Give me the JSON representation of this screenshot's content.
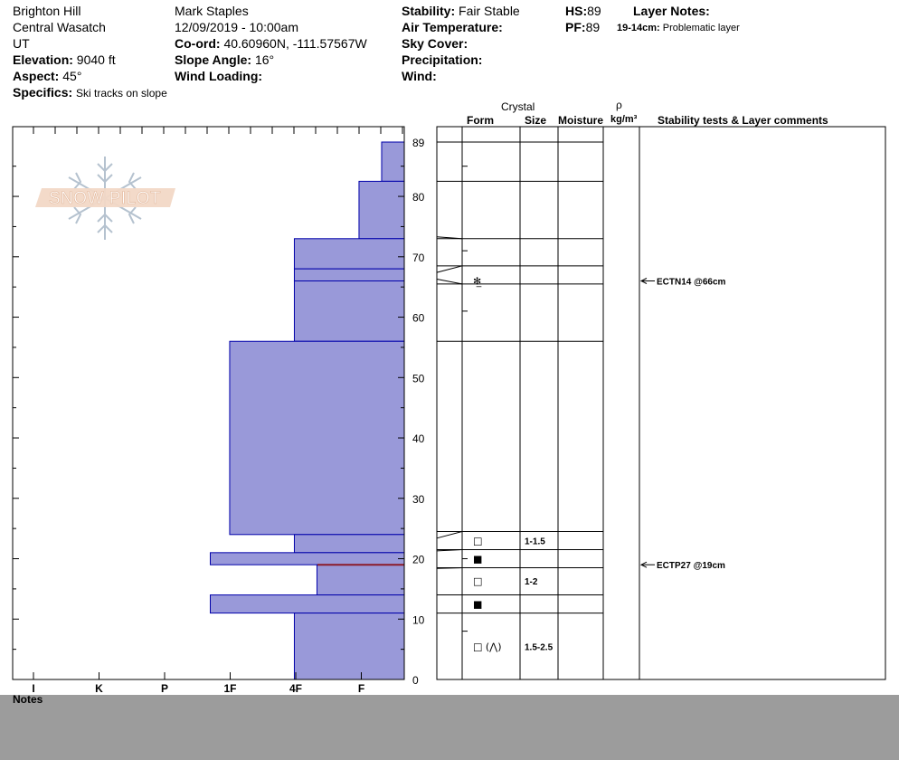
{
  "header": {
    "location": "Brighton Hill",
    "range": "Central Wasatch",
    "state": "UT",
    "elevation_label": "Elevation:",
    "elevation_value": "9040 ft",
    "aspect_label": "Aspect:",
    "aspect_value": "45°",
    "specifics_label": "Specifics:",
    "specifics_value": "Ski tracks on slope",
    "observer": "Mark Staples",
    "datetime": "12/09/2019 - 10:00am",
    "coord_label": "Co-ord:",
    "coord_value": "40.60960N, -111.57567W",
    "slope_label": "Slope Angle:",
    "slope_value": "16°",
    "wind_loading_label": "Wind Loading:",
    "stability_label": "Stability:",
    "stability_value": "Fair Stable",
    "air_temp_label": "Air Temperature:",
    "sky_cover_label": "Sky Cover:",
    "precip_label": "Precipitation:",
    "wind_label": "Wind:",
    "hs_label": "HS:",
    "hs_value": "89",
    "pf_label": "PF:",
    "pf_value": "89",
    "layer_notes_label": "Layer Notes:",
    "layer_note_range": "19-14cm:",
    "layer_note_text": "Problematic layer"
  },
  "columns": {
    "crystal": "Crystal",
    "form": "Form",
    "size": "Size",
    "moisture": "Moisture",
    "rho": "ρ",
    "density": "kg/m³",
    "comments": "Stability tests & Layer comments"
  },
  "logo": {
    "text": "SNOW PILOT"
  },
  "notes_label": "Notes",
  "colors": {
    "hardness_fill": "#9999d9",
    "hardness_stroke": "#0000aa",
    "weak_layer": "#8b1a2a",
    "footer": "#9c9c9c"
  },
  "chart_data": {
    "type": "bar",
    "orientation": "horizontal-step",
    "ylim": [
      0,
      89
    ],
    "y_ticks": [
      "0",
      "10",
      "20",
      "30",
      "40",
      "50",
      "60",
      "70",
      "80",
      "89"
    ],
    "hardness_scale": [
      "I",
      "K",
      "P",
      "1F",
      "4F",
      "F"
    ],
    "hardness_layers": [
      {
        "top": 89,
        "bottom": 82.5,
        "hardness": 0.35
      },
      {
        "top": 82.5,
        "bottom": 73,
        "hardness": 0.7
      },
      {
        "top": 73,
        "bottom": 68,
        "hardness": 1.7
      },
      {
        "top": 68,
        "bottom": 66,
        "hardness": 1.7
      },
      {
        "top": 66,
        "bottom": 56,
        "hardness": 1.7
      },
      {
        "top": 56,
        "bottom": 24,
        "hardness": 2.7
      },
      {
        "top": 24,
        "bottom": 21,
        "hardness": 1.7
      },
      {
        "top": 21,
        "bottom": 19,
        "hardness": 3.0
      },
      {
        "top": 19,
        "bottom": 14,
        "hardness": 1.35
      },
      {
        "top": 14,
        "bottom": 11,
        "hardness": 3.0
      },
      {
        "top": 11,
        "bottom": 0,
        "hardness": 1.7
      }
    ],
    "weak_layer_depth": 19,
    "layer_table": [
      {
        "top": 89,
        "bottom": 82.5
      },
      {
        "top": 82.5,
        "bottom": 73
      },
      {
        "top": 73,
        "bottom": 68.5
      },
      {
        "top": 68.5,
        "bottom": 65.5,
        "form": "✻̲"
      },
      {
        "top": 65.5,
        "bottom": 56
      },
      {
        "top": 56,
        "bottom": 24.5
      },
      {
        "top": 24.5,
        "bottom": 21.5,
        "form": "□",
        "size": "1-1.5"
      },
      {
        "top": 21.5,
        "bottom": 18.5,
        "form": "■"
      },
      {
        "top": 18.5,
        "bottom": 14
      },
      {
        "top": 14,
        "bottom": 11,
        "form": "■"
      },
      {
        "top": 11,
        "bottom": 0
      }
    ],
    "table_symbols": [
      {
        "depth": 66,
        "form": "✻̲"
      },
      {
        "depth": 23,
        "form": "□",
        "size": "1-1.5"
      },
      {
        "depth": 20,
        "form": "■"
      },
      {
        "depth": 16.3,
        "form": "□",
        "size": "1-2"
      },
      {
        "depth": 12.5,
        "form": "■"
      },
      {
        "depth": 5.5,
        "form": "□ (⋀)",
        "size": "1.5-2.5"
      }
    ],
    "stability_tests": [
      {
        "depth": 66,
        "label": "ECTN14 @66cm"
      },
      {
        "depth": 19,
        "label": "ECTP27 @19cm"
      }
    ]
  }
}
